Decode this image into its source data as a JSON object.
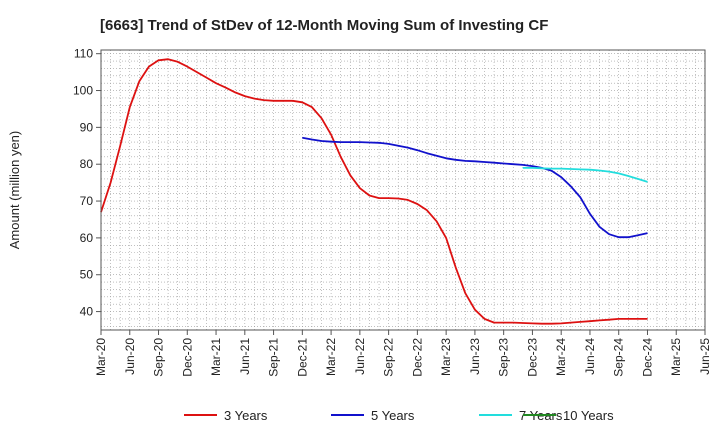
{
  "chart_data": {
    "type": "line",
    "title": "[6663]  Trend of StDev of 12-Month Moving Sum of Investing CF",
    "ylabel": "Amount (million yen)",
    "xlabel": "",
    "ylim": [
      35,
      111
    ],
    "yticks": [
      40,
      50,
      60,
      70,
      80,
      90,
      100,
      110
    ],
    "x_ticks": [
      "Mar-20",
      "Jun-20",
      "Sep-20",
      "Dec-20",
      "Mar-21",
      "Jun-21",
      "Sep-21",
      "Dec-21",
      "Mar-22",
      "Jun-22",
      "Sep-22",
      "Dec-22",
      "Mar-23",
      "Jun-23",
      "Sep-23",
      "Dec-23",
      "Mar-24",
      "Jun-24",
      "Sep-24",
      "Dec-24",
      "Mar-25",
      "Jun-25"
    ],
    "grid": true,
    "legend_position": "bottom",
    "series": [
      {
        "name": "3 Years",
        "color": "#dd1111",
        "x": [
          "Mar-20",
          "Apr-20",
          "May-20",
          "Jun-20",
          "Jul-20",
          "Aug-20",
          "Sep-20",
          "Oct-20",
          "Nov-20",
          "Dec-20",
          "Jan-21",
          "Feb-21",
          "Mar-21",
          "Apr-21",
          "May-21",
          "Jun-21",
          "Jul-21",
          "Aug-21",
          "Sep-21",
          "Oct-21",
          "Nov-21",
          "Dec-21",
          "Jan-22",
          "Feb-22",
          "Mar-22",
          "Apr-22",
          "May-22",
          "Jun-22",
          "Jul-22",
          "Aug-22",
          "Sep-22",
          "Oct-22",
          "Nov-22",
          "Dec-22",
          "Jan-23",
          "Feb-23",
          "Mar-23",
          "Apr-23",
          "May-23",
          "Jun-23",
          "Jul-23",
          "Aug-23",
          "Sep-23",
          "Oct-23",
          "Nov-23",
          "Dec-23",
          "Jan-24",
          "Feb-24",
          "Mar-24",
          "Apr-24",
          "May-24",
          "Jun-24",
          "Jul-24",
          "Aug-24",
          "Sep-24",
          "Oct-24",
          "Nov-24",
          "Dec-24"
        ],
        "values": [
          67,
          75,
          85,
          95.5,
          102.5,
          106.5,
          108.2,
          108.5,
          107.8,
          106.5,
          105,
          103.5,
          102,
          100.8,
          99.5,
          98.5,
          97.8,
          97.4,
          97.2,
          97.2,
          97.2,
          96.8,
          95.5,
          92.5,
          88,
          82,
          77,
          73.5,
          71.5,
          70.8,
          70.8,
          70.7,
          70.3,
          69.2,
          67.5,
          64.5,
          60,
          52,
          45,
          40.5,
          38,
          37,
          37,
          37,
          36.9,
          36.8,
          36.7,
          36.7,
          36.8,
          37,
          37.2,
          37.4,
          37.6,
          37.8,
          38,
          38,
          38,
          38
        ]
      },
      {
        "name": "5 Years",
        "color": "#1111cc",
        "x": [
          "Dec-21",
          "Jan-22",
          "Feb-22",
          "Mar-22",
          "Apr-22",
          "May-22",
          "Jun-22",
          "Jul-22",
          "Aug-22",
          "Sep-22",
          "Oct-22",
          "Nov-22",
          "Dec-22",
          "Jan-23",
          "Feb-23",
          "Mar-23",
          "Apr-23",
          "May-23",
          "Jun-23",
          "Jul-23",
          "Aug-23",
          "Sep-23",
          "Oct-23",
          "Nov-23",
          "Dec-23",
          "Jan-24",
          "Feb-24",
          "Mar-24",
          "Apr-24",
          "May-24",
          "Jun-24",
          "Jul-24",
          "Aug-24",
          "Sep-24",
          "Oct-24",
          "Nov-24",
          "Dec-24"
        ],
        "values": [
          87.2,
          86.7,
          86.3,
          86.1,
          86,
          86,
          86,
          85.9,
          85.8,
          85.5,
          85,
          84.5,
          83.8,
          83,
          82.3,
          81.6,
          81.2,
          80.9,
          80.8,
          80.6,
          80.4,
          80.2,
          80,
          79.8,
          79.5,
          79,
          78.2,
          76.5,
          74,
          71,
          66.5,
          63,
          61,
          60.2,
          60.2,
          60.7,
          61.3
        ]
      },
      {
        "name": "7 Years",
        "color": "#22dddd",
        "x": [
          "Nov-23",
          "Dec-23",
          "Jan-24",
          "Feb-24",
          "Mar-24",
          "Apr-24",
          "May-24",
          "Jun-24",
          "Jul-24",
          "Aug-24",
          "Sep-24",
          "Oct-24",
          "Nov-24",
          "Dec-24"
        ],
        "values": [
          79,
          79,
          78.9,
          78.8,
          78.8,
          78.7,
          78.6,
          78.5,
          78.3,
          78,
          77.5,
          76.8,
          76,
          75.2
        ]
      },
      {
        "name": "10 Years",
        "color": "#228822",
        "x": [],
        "values": []
      }
    ]
  }
}
